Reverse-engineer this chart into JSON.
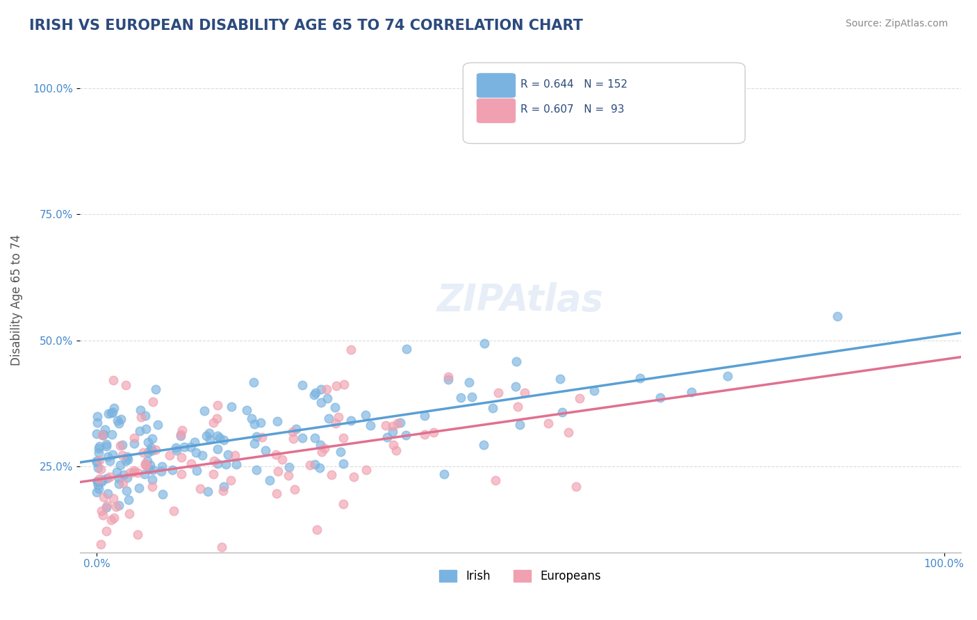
{
  "title": "IRISH VS EUROPEAN DISABILITY AGE 65 TO 74 CORRELATION CHART",
  "source": "Source: ZipAtlas.com",
  "xlabel": "",
  "ylabel": "Disability Age 65 to 74",
  "x_tick_labels": [
    "0.0%",
    "100.0%"
  ],
  "y_tick_labels": [
    "25.0%",
    "50.0%",
    "75.0%",
    "100.0%"
  ],
  "watermark": "ZIPAtlas",
  "legend_irish_R": "R = 0.644",
  "legend_irish_N": "N = 152",
  "legend_euro_R": "R = 0.607",
  "legend_euro_N": "N =  93",
  "irish_color": "#7ab3e0",
  "euro_color": "#f0a0b0",
  "irish_line_color": "#5a9fd4",
  "euro_line_color": "#e07090",
  "irish_R": 0.644,
  "euro_R": 0.607,
  "irish_N": 152,
  "euro_N": 93,
  "background_color": "#ffffff",
  "grid_color": "#cccccc",
  "title_color": "#2c4a7c",
  "axis_label_color": "#555555",
  "tick_label_color": "#4488cc",
  "legend_text_color": "#2c4a7c"
}
